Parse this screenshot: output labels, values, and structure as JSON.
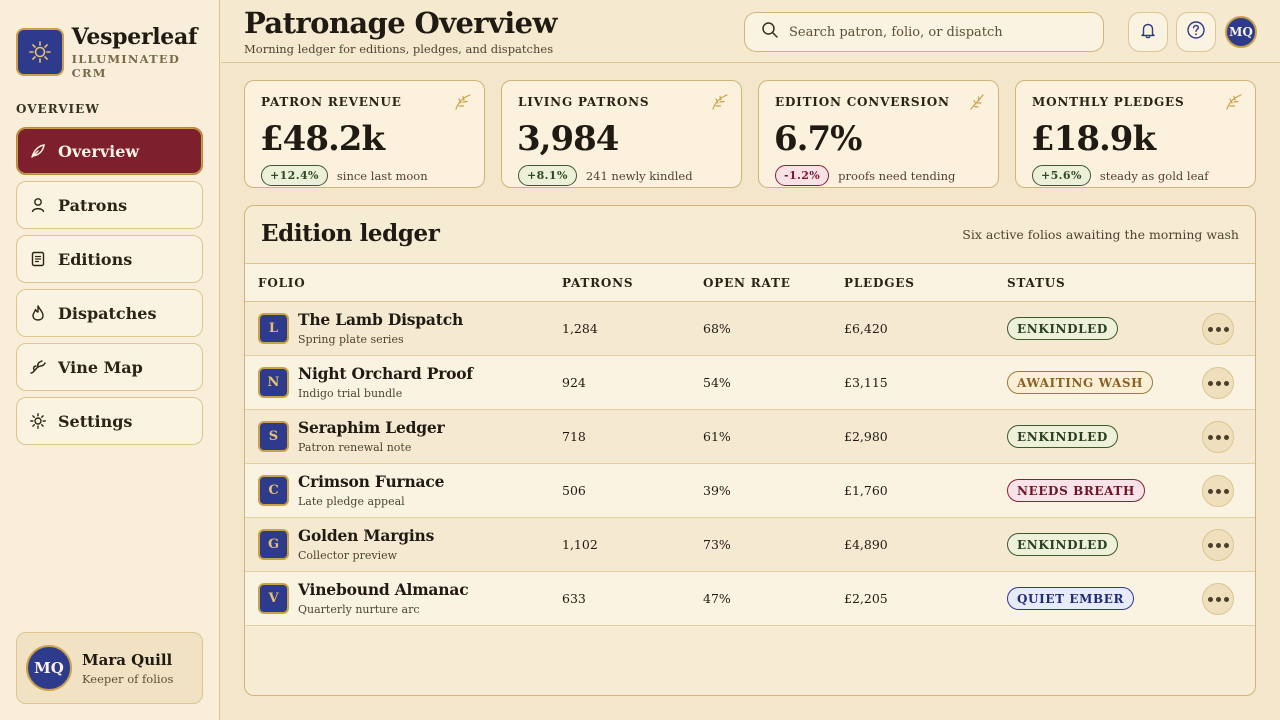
{
  "brand": {
    "name": "Vesperleaf",
    "subtitle": "ILLUMINATED CRM"
  },
  "nav": {
    "heading": "OVERVIEW",
    "items": [
      {
        "label": "Overview",
        "icon": "quill-icon",
        "active": true
      },
      {
        "label": "Patrons",
        "icon": "person-icon"
      },
      {
        "label": "Editions",
        "icon": "document-icon"
      },
      {
        "label": "Dispatches",
        "icon": "flame-icon"
      },
      {
        "label": "Vine Map",
        "icon": "vine-icon"
      },
      {
        "label": "Settings",
        "icon": "gear-icon"
      }
    ]
  },
  "user": {
    "initials": "MQ",
    "name": "Mara Quill",
    "role": "Keeper of folios"
  },
  "header": {
    "title": "Patronage Overview",
    "subtitle": "Morning ledger for editions, pledges, and dispatches",
    "search_placeholder": "Search patron, folio, or dispatch",
    "avatar_initials": "MQ"
  },
  "stats": [
    {
      "label": "PATRON REVENUE",
      "value": "£48.2k",
      "delta": "+12.4%",
      "trend": "up",
      "note": "since last moon"
    },
    {
      "label": "LIVING PATRONS",
      "value": "3,984",
      "delta": "+8.1%",
      "trend": "up",
      "note": "241 newly kindled"
    },
    {
      "label": "EDITION CONVERSION",
      "value": "6.7%",
      "delta": "-1.2%",
      "trend": "down",
      "note": "proofs need tending"
    },
    {
      "label": "MONTHLY PLEDGES",
      "value": "£18.9k",
      "delta": "+5.6%",
      "trend": "up",
      "note": "steady as gold leaf"
    }
  ],
  "ledger": {
    "title": "Edition ledger",
    "subtitle": "Six active folios awaiting the morning wash",
    "columns": {
      "folio": "FOLIO",
      "patrons": "PATRONS",
      "open_rate": "OPEN RATE",
      "pledges": "PLEDGES",
      "status": "STATUS"
    },
    "rows": [
      {
        "initial": "L",
        "name": "The Lamb Dispatch",
        "desc": "Spring plate series",
        "patrons": "1,284",
        "open_rate": "68%",
        "pledges": "£6,420",
        "status": "ENKINDLED",
        "status_kind": "enk"
      },
      {
        "initial": "N",
        "name": "Night Orchard Proof",
        "desc": "Indigo trial bundle",
        "patrons": "924",
        "open_rate": "54%",
        "pledges": "£3,115",
        "status": "AWAITING WASH",
        "status_kind": "wash"
      },
      {
        "initial": "S",
        "name": "Seraphim Ledger",
        "desc": "Patron renewal note",
        "patrons": "718",
        "open_rate": "61%",
        "pledges": "£2,980",
        "status": "ENKINDLED",
        "status_kind": "enk"
      },
      {
        "initial": "C",
        "name": "Crimson Furnace",
        "desc": "Late pledge appeal",
        "patrons": "506",
        "open_rate": "39%",
        "pledges": "£1,760",
        "status": "NEEDS BREATH",
        "status_kind": "breath"
      },
      {
        "initial": "G",
        "name": "Golden Margins",
        "desc": "Collector preview",
        "patrons": "1,102",
        "open_rate": "73%",
        "pledges": "£4,890",
        "status": "ENKINDLED",
        "status_kind": "enk"
      },
      {
        "initial": "V",
        "name": "Vinebound Almanac",
        "desc": "Quarterly nurture arc",
        "patrons": "633",
        "open_rate": "47%",
        "pledges": "£2,205",
        "status": "QUIET EMBER",
        "status_kind": "ember"
      }
    ]
  },
  "colors": {
    "accent": "#7e1f2e",
    "indigo": "#2e3a8c",
    "gold": "#c9a14b",
    "parchment": "#f3e6cb"
  }
}
